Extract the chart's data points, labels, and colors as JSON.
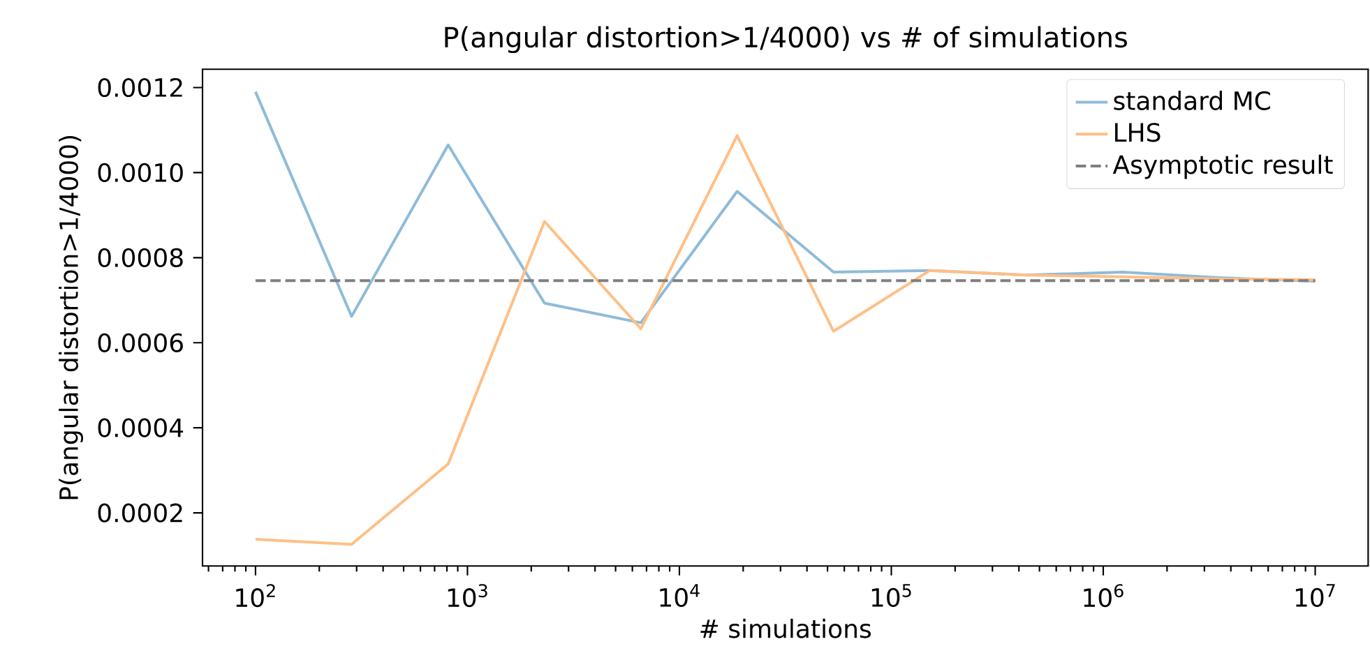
{
  "chart_data": {
    "type": "line",
    "title": "P(angular distortion>1/4000) vs # of simulations",
    "xlabel": "# simulations",
    "ylabel": "P(angular distortion>1/4000)",
    "x": [
      100,
      284,
      811,
      2310,
      6579,
      18738,
      53367,
      151991,
      432876,
      1232847,
      3511192,
      10000000
    ],
    "series": [
      {
        "name": "standard MC",
        "color": "#8fbbd9",
        "values": [
          0.00119,
          0.000662,
          0.001065,
          0.000693,
          0.000647,
          0.000956,
          0.000766,
          0.00077,
          0.000759,
          0.000766,
          0.000753,
          0.000745
        ]
      },
      {
        "name": "LHS",
        "color": "#ffbf86",
        "values": [
          0.000138,
          0.000126,
          0.000315,
          0.000885,
          0.000633,
          0.001087,
          0.000627,
          0.00077,
          0.000759,
          0.000755,
          0.00075,
          0.000748
        ]
      },
      {
        "name": "Asymptotic result",
        "color": "#7f7f7f",
        "line_style": "dashed",
        "x": [
          100,
          10000000
        ],
        "values": [
          0.000746,
          0.000746
        ]
      }
    ],
    "log": "x",
    "xlim": [
      56.23,
      17780000
    ],
    "ylim": [
      7.5e-05,
      0.001243
    ],
    "xticks": [
      {
        "value": 100,
        "label": "10$^{2}$"
      },
      {
        "value": 1000,
        "label": "10$^{3}$"
      },
      {
        "value": 10000,
        "label": "10$^{4}$"
      },
      {
        "value": 100000,
        "label": "10$^{5}$"
      },
      {
        "value": 1000000,
        "label": "10$^{6}$"
      },
      {
        "value": 10000000,
        "label": "10$^{7}$"
      }
    ],
    "yticks": [
      {
        "value": 0.0002,
        "label": "0.0002"
      },
      {
        "value": 0.0004,
        "label": "0.0004"
      },
      {
        "value": 0.0006,
        "label": "0.0006"
      },
      {
        "value": 0.0008,
        "label": "0.0008"
      },
      {
        "value": 0.001,
        "label": "0.0010"
      },
      {
        "value": 0.0012,
        "label": "0.0012"
      }
    ],
    "grid": false,
    "legend": "top right",
    "marker": "none"
  }
}
